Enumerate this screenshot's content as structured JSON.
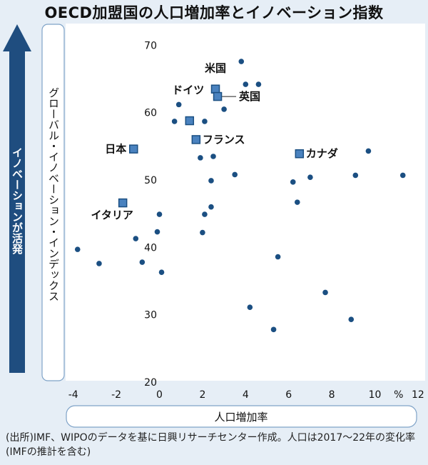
{
  "title": "OECD加盟国の人口増加率とイノベーション指数",
  "source": "(出所)IMF、WIPOのデータを基に日興リサーチセンター作成。人口は2017～22年の変化率(IMFの推計を含む)",
  "arrow_label": "イノベーションが活発",
  "colors": {
    "point": "#1b4f82",
    "highlight": "#4a82bf",
    "arrow": "#1f4d7f",
    "background": "#e6eef6",
    "plot": "#ffffff"
  },
  "chart_data": {
    "type": "scatter",
    "xlabel": "人口増加率",
    "ylabel": "グローバル・イノベーション・インデックス",
    "x_unit": "%",
    "xlim": [
      -4.4,
      12.2
    ],
    "ylim": [
      19,
      71
    ],
    "xticks": [
      -4,
      -2,
      0,
      2,
      4,
      6,
      8,
      10,
      12
    ],
    "xtick_labels": [
      "-4",
      "-2",
      "0",
      "2",
      "4",
      "6",
      "8",
      "10",
      "12"
    ],
    "yticks": [
      20,
      30,
      40,
      50,
      60,
      70
    ],
    "ytick_labels": [
      "20",
      "30",
      "40",
      "50",
      "60",
      "70"
    ],
    "labeled_points": [
      {
        "name": "米国",
        "x": 2.6,
        "y": 63.5
      },
      {
        "name": "英国",
        "x": 2.7,
        "y": 62.4
      },
      {
        "name": "ドイツ",
        "x": 1.4,
        "y": 58.8
      },
      {
        "name": "フランス",
        "x": 1.7,
        "y": 56.0
      },
      {
        "name": "日本",
        "x": -1.2,
        "y": 54.6
      },
      {
        "name": "カナダ",
        "x": 6.5,
        "y": 53.9
      },
      {
        "name": "イタリア",
        "x": -1.7,
        "y": 46.6
      }
    ],
    "points": [
      {
        "x": 3.8,
        "y": 67.6
      },
      {
        "x": 4.0,
        "y": 64.2
      },
      {
        "x": 4.6,
        "y": 64.2
      },
      {
        "x": 0.9,
        "y": 61.2
      },
      {
        "x": 3.0,
        "y": 60.5
      },
      {
        "x": 0.7,
        "y": 58.7
      },
      {
        "x": 2.1,
        "y": 58.7
      },
      {
        "x": 9.7,
        "y": 54.3
      },
      {
        "x": 1.9,
        "y": 53.3
      },
      {
        "x": 2.5,
        "y": 53.5
      },
      {
        "x": 3.5,
        "y": 50.8
      },
      {
        "x": 9.1,
        "y": 50.7
      },
      {
        "x": 11.3,
        "y": 50.7
      },
      {
        "x": 7.0,
        "y": 50.4
      },
      {
        "x": 2.4,
        "y": 49.9
      },
      {
        "x": 6.2,
        "y": 49.7
      },
      {
        "x": 6.4,
        "y": 46.7
      },
      {
        "x": 2.4,
        "y": 46.0
      },
      {
        "x": 0.0,
        "y": 44.9
      },
      {
        "x": 2.1,
        "y": 44.9
      },
      {
        "x": 2.0,
        "y": 42.2
      },
      {
        "x": -0.1,
        "y": 42.3
      },
      {
        "x": -1.1,
        "y": 41.3
      },
      {
        "x": -3.8,
        "y": 39.7
      },
      {
        "x": 5.5,
        "y": 38.6
      },
      {
        "x": -0.8,
        "y": 37.8
      },
      {
        "x": -2.8,
        "y": 37.6
      },
      {
        "x": 0.1,
        "y": 36.3
      },
      {
        "x": 7.7,
        "y": 33.3
      },
      {
        "x": 4.2,
        "y": 31.1
      },
      {
        "x": 8.9,
        "y": 29.3
      },
      {
        "x": 5.3,
        "y": 27.8
      }
    ]
  }
}
